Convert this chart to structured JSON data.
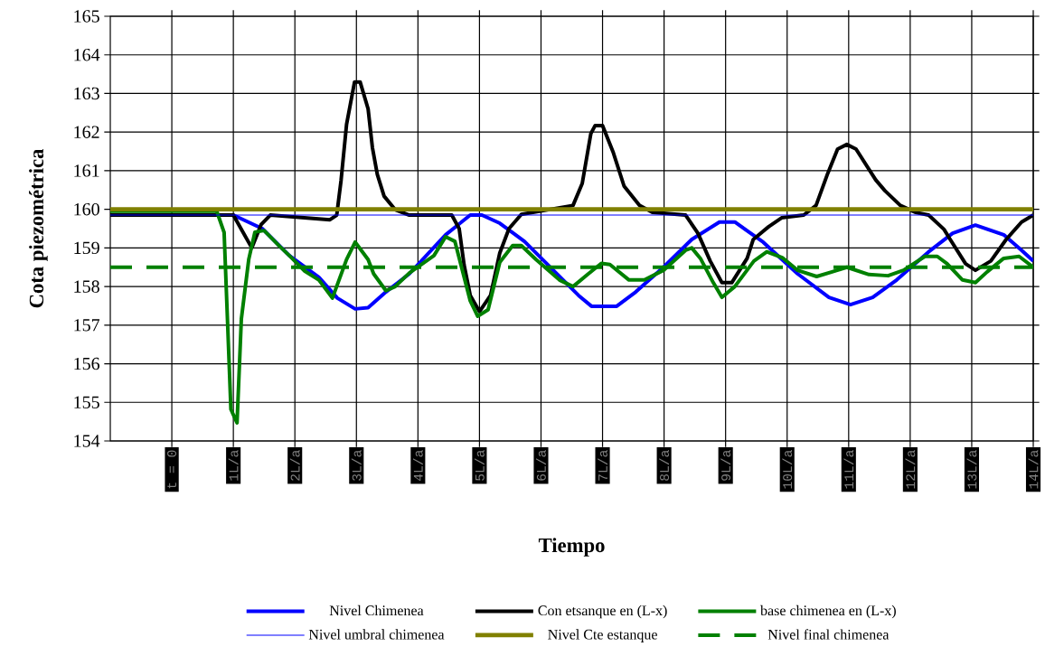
{
  "chart_data": {
    "type": "line",
    "xlabel": "Tiempo",
    "ylabel": "Cota piezométrica",
    "xlim": [
      -1,
      14
    ],
    "ylim": [
      154,
      165
    ],
    "xticks": [
      {
        "value": 0,
        "label": "t = 0"
      },
      {
        "value": 1,
        "label": "1L/a"
      },
      {
        "value": 2,
        "label": "2L/a"
      },
      {
        "value": 3,
        "label": "3L/a"
      },
      {
        "value": 4,
        "label": "4L/a"
      },
      {
        "value": 5,
        "label": "5L/a"
      },
      {
        "value": 6,
        "label": "6L/a"
      },
      {
        "value": 7,
        "label": "7L/a"
      },
      {
        "value": 8,
        "label": "8L/a"
      },
      {
        "value": 9,
        "label": "9L/a"
      },
      {
        "value": 10,
        "label": "10L/a"
      },
      {
        "value": 11,
        "label": "11L/a"
      },
      {
        "value": 12,
        "label": "12L/a"
      },
      {
        "value": 13,
        "label": "13L/a"
      },
      {
        "value": 14,
        "label": "14L/a"
      }
    ],
    "yticks": [
      154,
      155,
      156,
      157,
      158,
      159,
      160,
      161,
      162,
      163,
      164,
      165
    ],
    "grid": true,
    "legend": "bottom",
    "marker": "none",
    "line_style": "solid",
    "series": [
      {
        "name": "Nivel Chimenea",
        "color": "#0000ff",
        "x": [
          -1,
          1.0,
          1.47,
          1.91,
          2.39,
          2.69,
          2.98,
          3.19,
          3.48,
          3.86,
          4.45,
          4.85,
          5.04,
          5.33,
          5.73,
          6.61,
          6.82,
          7.23,
          7.54,
          7.99,
          8.45,
          8.9,
          9.15,
          9.61,
          10.17,
          10.68,
          11.03,
          11.39,
          11.78,
          12.3,
          12.69,
          13.06,
          13.52,
          13.81,
          14
        ],
        "values": [
          159.85,
          159.85,
          159.5,
          158.8,
          158.24,
          157.7,
          157.42,
          157.45,
          157.86,
          158.33,
          159.34,
          159.85,
          159.85,
          159.64,
          159.17,
          157.77,
          157.49,
          157.49,
          157.86,
          158.5,
          159.22,
          159.67,
          159.67,
          159.15,
          158.33,
          157.72,
          157.53,
          157.72,
          158.17,
          158.9,
          159.38,
          159.59,
          159.34,
          158.94,
          158.66
        ]
      },
      {
        "name": "Con etsanque en (L-x)",
        "color": "#000000",
        "x": [
          -1,
          1.0,
          1.3,
          1.45,
          1.6,
          2.57,
          2.68,
          2.75,
          2.84,
          2.97,
          3.06,
          3.19,
          3.26,
          3.34,
          3.45,
          3.63,
          3.86,
          4.55,
          4.67,
          4.75,
          4.85,
          5.0,
          5.18,
          5.33,
          5.48,
          5.68,
          6.52,
          6.67,
          6.81,
          6.88,
          7.0,
          7.17,
          7.35,
          7.6,
          7.81,
          8.35,
          8.55,
          8.75,
          8.94,
          9.1,
          9.35,
          9.45,
          9.7,
          9.91,
          10.27,
          10.47,
          10.66,
          10.82,
          10.97,
          11.12,
          11.44,
          11.59,
          11.84,
          12.09,
          12.3,
          12.55,
          12.65,
          12.9,
          13.06,
          13.31,
          13.56,
          13.81,
          14
        ],
        "values": [
          159.85,
          159.85,
          159.0,
          159.6,
          159.85,
          159.73,
          159.85,
          160.74,
          162.2,
          163.3,
          163.3,
          162.6,
          161.6,
          160.9,
          160.34,
          159.99,
          159.85,
          159.85,
          159.5,
          158.56,
          157.77,
          157.35,
          157.77,
          158.87,
          159.5,
          159.87,
          160.1,
          160.67,
          161.96,
          162.17,
          162.17,
          161.49,
          160.6,
          160.1,
          159.92,
          159.85,
          159.38,
          158.66,
          158.1,
          158.1,
          158.73,
          159.22,
          159.55,
          159.78,
          159.85,
          160.1,
          160.93,
          161.56,
          161.68,
          161.56,
          160.76,
          160.48,
          160.1,
          159.92,
          159.85,
          159.48,
          159.22,
          158.59,
          158.42,
          158.66,
          159.22,
          159.67,
          159.85
        ]
      },
      {
        "name": "base chimenea en (L-x)",
        "color": "#008000",
        "x": [
          -1,
          0.73,
          0.85,
          0.96,
          1.06,
          1.13,
          1.25,
          1.35,
          1.5,
          1.76,
          1.91,
          2.16,
          2.39,
          2.61,
          2.84,
          2.98,
          3.19,
          3.28,
          3.48,
          3.63,
          3.86,
          4.26,
          4.45,
          4.6,
          4.85,
          4.97,
          5.14,
          5.33,
          5.54,
          5.68,
          5.92,
          6.3,
          6.52,
          6.77,
          6.98,
          7.12,
          7.43,
          7.68,
          7.99,
          8.35,
          8.45,
          8.59,
          8.8,
          8.94,
          9.15,
          9.46,
          9.67,
          9.92,
          10.17,
          10.48,
          10.73,
          10.97,
          11.33,
          11.64,
          11.89,
          12.24,
          12.44,
          12.6,
          12.85,
          13.06,
          13.25,
          13.52,
          13.77,
          14
        ],
        "values": [
          159.95,
          159.95,
          159.4,
          154.82,
          154.47,
          157.16,
          158.7,
          159.41,
          159.45,
          159.03,
          158.8,
          158.4,
          158.17,
          157.7,
          158.7,
          159.15,
          158.7,
          158.33,
          157.89,
          158.0,
          158.35,
          158.8,
          159.29,
          159.17,
          157.63,
          157.23,
          157.4,
          158.63,
          159.06,
          159.06,
          158.7,
          158.17,
          158.0,
          158.33,
          158.6,
          158.57,
          158.17,
          158.17,
          158.42,
          158.94,
          159.0,
          158.73,
          158.1,
          157.72,
          158.0,
          158.66,
          158.9,
          158.75,
          158.42,
          158.26,
          158.38,
          158.5,
          158.31,
          158.28,
          158.42,
          158.78,
          158.78,
          158.59,
          158.17,
          158.1,
          158.38,
          158.73,
          158.78,
          158.5
        ]
      },
      {
        "name": "Nivel umbral chimenea",
        "color": "#0000ff",
        "x": [
          -1,
          14
        ],
        "values": [
          159.85,
          159.85
        ]
      },
      {
        "name": "Nivel Cte estanque",
        "color": "#808000",
        "x": [
          -1,
          14
        ],
        "values": [
          160,
          160
        ]
      },
      {
        "name": "Nivel final chimenea",
        "color": "#008000",
        "x": [
          -1,
          14
        ],
        "values": [
          158.5,
          158.5
        ],
        "line_style": "dashed"
      }
    ]
  }
}
